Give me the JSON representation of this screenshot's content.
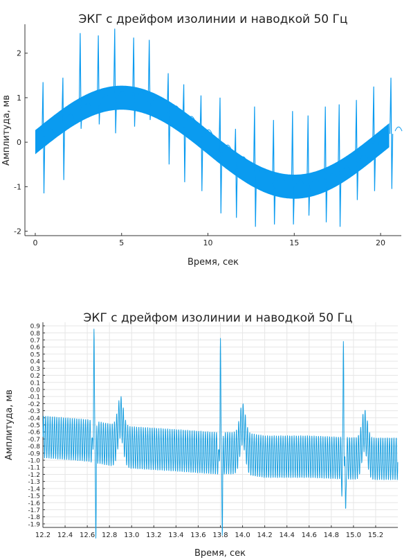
{
  "figure": {
    "background": "#ffffff"
  },
  "chart_data": [
    {
      "type": "line",
      "title": "ЭКГ с дрейфом изолинии и наводкой 50 Гц",
      "xlabel": "Время, сек",
      "ylabel": "Амплитуда, мв",
      "xlim": [
        -0.6,
        21.2
      ],
      "ylim": [
        -2.1,
        2.65
      ],
      "xticks": [
        "0",
        "5",
        "10",
        "15",
        "20"
      ],
      "yticks": [
        "-2",
        "-1",
        "0",
        "1",
        "2"
      ],
      "grid": false,
      "color": "#0a9bf0",
      "series": [
        {
          "signal": "sinusoidal baseline drift + 50 Hz interference + QRS complexes",
          "baseline_amplitude": 1.0,
          "baseline_period": 20,
          "interference_amplitude": 0.27,
          "x_start": 0,
          "x_end": 20.5,
          "beats": [
            {
              "t": 0.45,
              "r": 1.35,
              "s": -1.15
            },
            {
              "t": 1.6,
              "r": 1.45,
              "s": -0.85
            },
            {
              "t": 2.6,
              "r": 2.45,
              "s": 0.3
            },
            {
              "t": 3.65,
              "r": 2.4,
              "s": 0.4
            },
            {
              "t": 4.6,
              "r": 2.55,
              "s": 0.2
            },
            {
              "t": 5.7,
              "r": 2.35,
              "s": 0.35
            },
            {
              "t": 6.6,
              "r": 2.3,
              "s": 0.5
            },
            {
              "t": 7.7,
              "r": 1.55,
              "s": -0.5
            },
            {
              "t": 8.6,
              "r": 1.3,
              "s": -0.9
            },
            {
              "t": 9.6,
              "r": 1.05,
              "s": -1.1
            },
            {
              "t": 10.7,
              "r": 1.0,
              "s": -1.6
            },
            {
              "t": 11.6,
              "r": 0.3,
              "s": -1.7
            },
            {
              "t": 12.7,
              "r": 0.8,
              "s": -1.9
            },
            {
              "t": 13.8,
              "r": 0.5,
              "s": -1.85
            },
            {
              "t": 14.9,
              "r": 0.7,
              "s": -1.85
            },
            {
              "t": 15.8,
              "r": 0.6,
              "s": -1.65
            },
            {
              "t": 16.8,
              "r": 0.8,
              "s": -1.8
            },
            {
              "t": 17.6,
              "r": 0.85,
              "s": -1.9
            },
            {
              "t": 18.6,
              "r": 0.95,
              "s": -1.3
            },
            {
              "t": 19.6,
              "r": 1.25,
              "s": -1.1
            },
            {
              "t": 20.6,
              "r": 1.45,
              "s": -1.05
            }
          ]
        }
      ]
    },
    {
      "type": "line",
      "title": "ЭКГ с дрейфом изолинии и наводкой 50 Гц",
      "xlabel": "Время, сек",
      "ylabel": "Амплитуда, мв",
      "xlim": [
        12.2,
        15.4
      ],
      "ylim": [
        -1.95,
        0.95
      ],
      "xticks": [
        "12.2",
        "12.4",
        "12.6",
        "12.8",
        "13.0",
        "13.2",
        "13.4",
        "13.6",
        "13.8",
        "14.0",
        "14.2",
        "14.4",
        "14.6",
        "14.8",
        "15.0",
        "15.2"
      ],
      "yticks": [
        "0.9",
        "0.8",
        "0.7",
        "0.6",
        "0.5",
        "0.4",
        "0.3",
        "0.2",
        "0.1",
        "0.0",
        "-0.1",
        "-0.2",
        "-0.3",
        "-0.4",
        "-0.5",
        "-0.6",
        "-0.7",
        "-0.8",
        "-0.9",
        "-1.0",
        "-1.1",
        "-1.2",
        "-1.3",
        "-1.4",
        "-1.5",
        "-1.6",
        "-1.7",
        "-1.8",
        "-1.9"
      ],
      "grid": true,
      "color": "#1ba0e0",
      "series": [
        {
          "signal": "zoomed segment: baseline trace with 50 Hz oscillation (about 0.6 mV peak-to-peak) and three QRS complexes",
          "x_start": 12.2,
          "x_end": 15.4,
          "osc_amplitude": 0.3,
          "baseline_points": [
            [
              12.2,
              -0.67
            ],
            [
              12.6,
              -0.72
            ],
            [
              12.8,
              -0.78
            ],
            [
              13.0,
              -0.82
            ],
            [
              13.4,
              -0.86
            ],
            [
              13.75,
              -0.9
            ],
            [
              14.0,
              -0.9
            ],
            [
              14.2,
              -0.95
            ],
            [
              14.6,
              -0.95
            ],
            [
              14.9,
              -0.97
            ],
            [
              15.1,
              -0.98
            ],
            [
              15.4,
              -0.98
            ]
          ],
          "beats": [
            {
              "q": 12.645,
              "r_time": 12.66,
              "r": 0.83,
              "s_time": 12.678,
              "s": -1.92,
              "t_time": 12.9,
              "t": -0.05
            },
            {
              "q": 13.785,
              "r_time": 13.8,
              "r": 0.7,
              "s_time": 13.818,
              "s": -1.87,
              "t_time": 14.0,
              "t": -0.15
            },
            {
              "q": 14.895,
              "r_time": 14.91,
              "r": 0.67,
              "s_time": 14.928,
              "s": -1.83,
              "t_time": 15.1,
              "t": -0.25
            }
          ]
        }
      ]
    }
  ]
}
